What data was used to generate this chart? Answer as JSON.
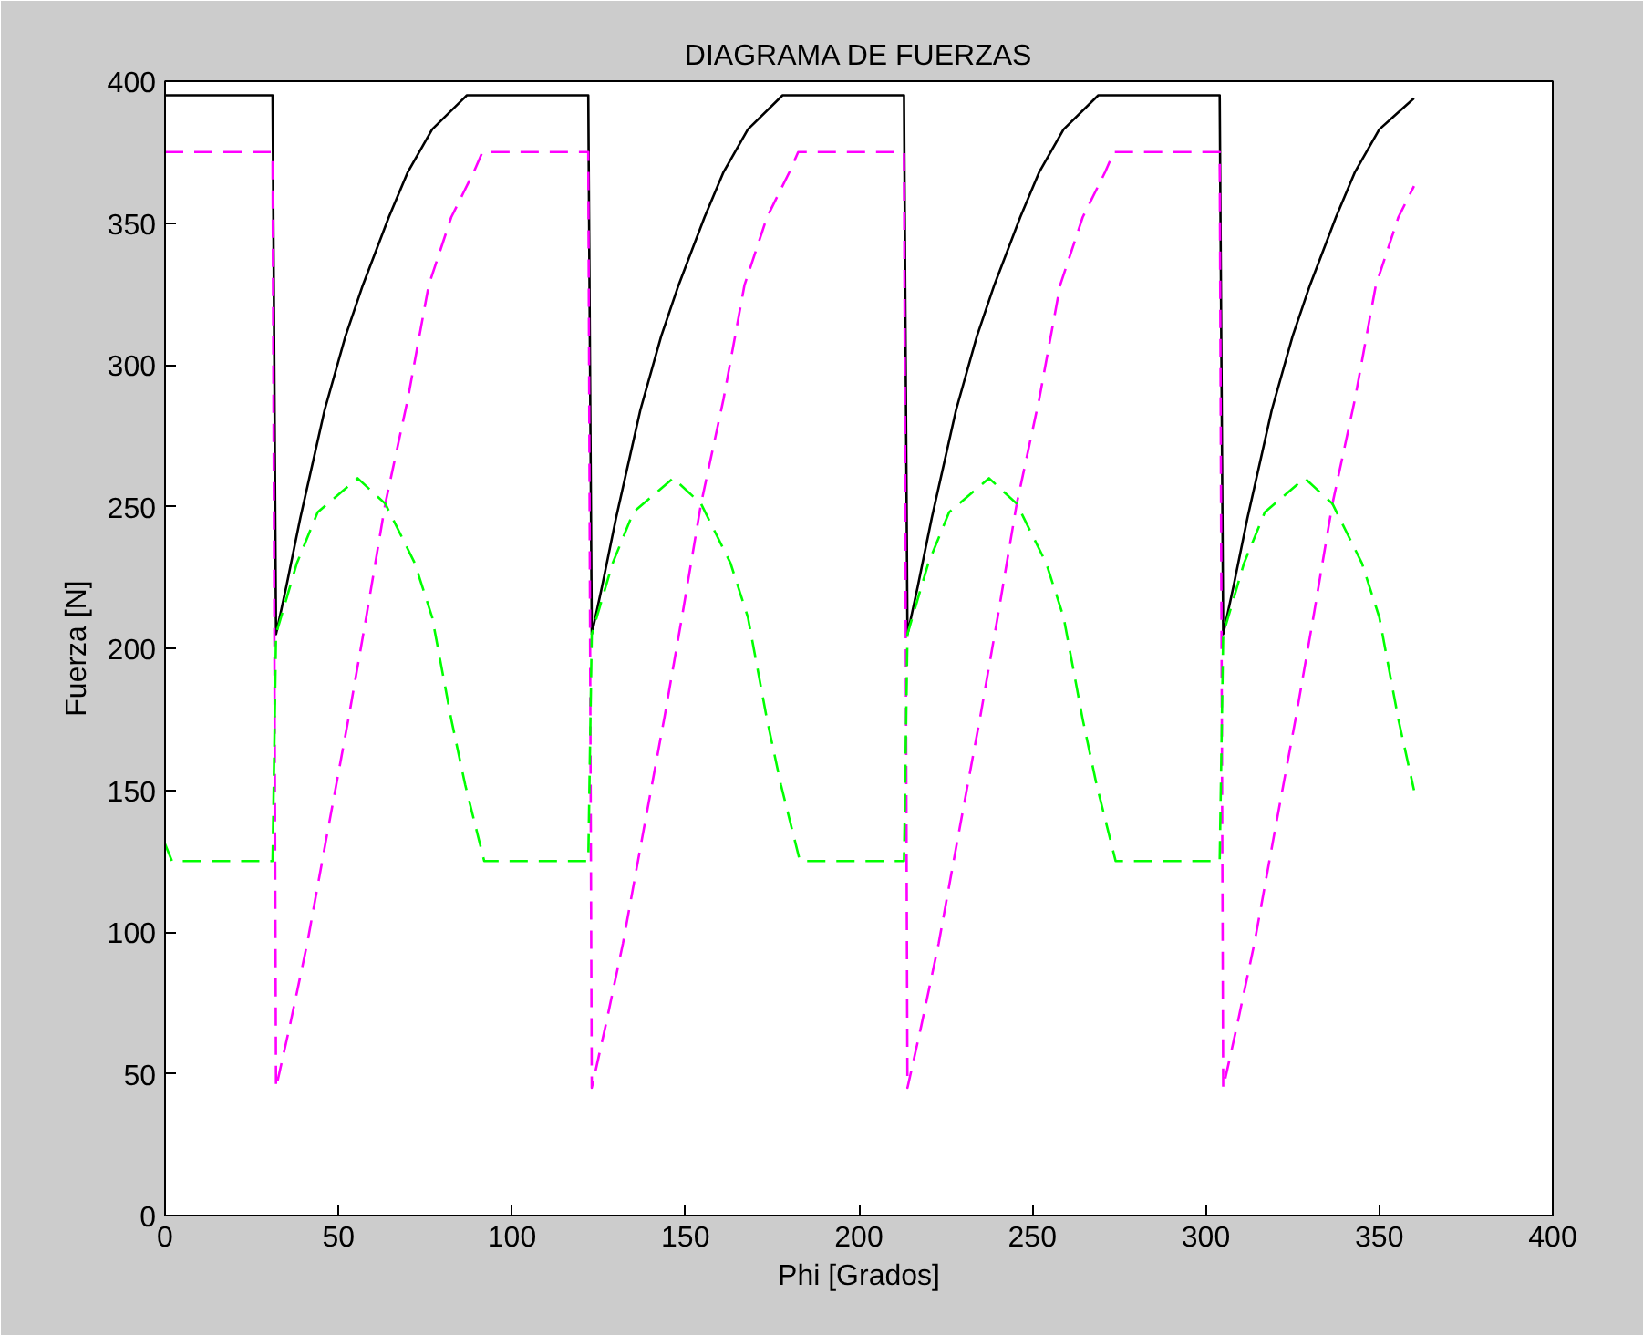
{
  "chart_data": {
    "type": "line",
    "title": "DIAGRAMA DE FUERZAS",
    "xlabel": "Phi [Grados]",
    "ylabel": "Fuerza [N]",
    "xlim": [
      0,
      400
    ],
    "ylim": [
      0,
      400
    ],
    "xticks": [
      0,
      50,
      100,
      150,
      200,
      250,
      300,
      350,
      400
    ],
    "yticks": [
      0,
      50,
      100,
      150,
      200,
      250,
      300,
      350,
      400
    ],
    "grid": false,
    "marker": "none",
    "series": [
      {
        "color": "#000000",
        "line_style": "solid",
        "x": [
          0,
          31,
          32,
          35,
          39,
          46,
          52,
          57,
          64.5,
          70,
          77,
          87,
          122,
          123,
          126,
          130,
          137,
          143,
          148,
          155.5,
          161,
          168,
          178,
          213,
          214,
          217,
          221,
          228,
          234,
          239,
          246.5,
          252,
          259,
          269,
          304,
          305,
          308,
          312,
          319,
          325,
          330,
          337.5,
          343,
          350,
          360
        ],
        "values": [
          395,
          395,
          205,
          222,
          246,
          284,
          310,
          328,
          352,
          368,
          383,
          395,
          395,
          205,
          222,
          246,
          284,
          310,
          328,
          352,
          368,
          383,
          395,
          395,
          205,
          222,
          246,
          284,
          310,
          328,
          352,
          368,
          383,
          395,
          395,
          205,
          222,
          246,
          284,
          310,
          328,
          352,
          368,
          383,
          394
        ]
      },
      {
        "color": "#ff00ff",
        "line_style": "dashed",
        "x": [
          0,
          31,
          32,
          36,
          41,
          46.5,
          53,
          58,
          63.5,
          70,
          76,
          82.5,
          89,
          91.5,
          122,
          123,
          127,
          132,
          137.5,
          144,
          149,
          154.5,
          161,
          167,
          173.5,
          180,
          182.5,
          213,
          214,
          218,
          223,
          228.5,
          235,
          240,
          245.5,
          252,
          258,
          264.5,
          271,
          273.5,
          304,
          305,
          309,
          314,
          319.5,
          326,
          331,
          336.5,
          343,
          349,
          355.5,
          360
        ],
        "values": [
          375,
          375,
          45,
          67,
          96,
          133,
          176,
          211,
          251,
          288,
          328,
          352,
          368,
          375,
          375,
          45,
          67,
          96,
          133,
          176,
          211,
          251,
          288,
          328,
          352,
          368,
          375,
          375,
          45,
          67,
          96,
          133,
          176,
          211,
          251,
          288,
          328,
          352,
          368,
          375,
          375,
          45,
          67,
          96,
          133,
          176,
          211,
          251,
          288,
          328,
          352,
          363
        ]
      },
      {
        "color": "#00ff00",
        "line_style": "dashed",
        "x": [
          0,
          2,
          31,
          32,
          38,
          44,
          55.5,
          63.5,
          72,
          77,
          82.5,
          86.5,
          92,
          122,
          123,
          129,
          135,
          146.5,
          154.5,
          163,
          168,
          173.5,
          177.5,
          183,
          213,
          214,
          220,
          226,
          237.5,
          245.5,
          254,
          259,
          264.5,
          268.5,
          274,
          304,
          305,
          311,
          317,
          328.5,
          336.5,
          345,
          350,
          355.5,
          360
        ],
        "values": [
          131,
          125,
          125,
          205,
          230,
          248,
          260,
          251,
          230,
          211,
          175,
          152,
          125,
          125,
          205,
          230,
          248,
          260,
          251,
          230,
          211,
          175,
          152,
          125,
          125,
          205,
          230,
          248,
          260,
          251,
          230,
          211,
          175,
          152,
          125,
          125,
          205,
          230,
          248,
          260,
          251,
          230,
          211,
          175,
          150
        ]
      }
    ]
  }
}
